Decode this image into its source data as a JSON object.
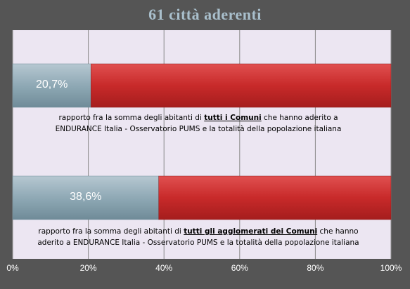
{
  "chart_data": {
    "type": "bar",
    "orientation": "horizontal",
    "stacked": true,
    "title": "61 città aderenti",
    "xlim": [
      0,
      100
    ],
    "x_ticks": [
      "0%",
      "20%",
      "40%",
      "60%",
      "80%",
      "100%"
    ],
    "grid": true,
    "bars": [
      {
        "value": 20.7,
        "remainder": 79.3,
        "label": "20,7%",
        "caption_pre": "rapporto fra la somma degli abitanti di ",
        "caption_bold": "tutti i Comuni",
        "caption_post": " che hanno aderito a",
        "caption_line2": "ENDURANCE Italia - Osservatorio PUMS e la totalità della popolazione italiana"
      },
      {
        "value": 38.6,
        "remainder": 61.4,
        "label": "38,6%",
        "caption_pre": "rapporto fra la somma degli abitanti di ",
        "caption_bold": "tutti gli agglomerati dei Comuni",
        "caption_post": " che hanno",
        "caption_line2": "aderito a ENDURANCE Italia - Osservatorio PUMS e la totalità della popolazione italiana"
      }
    ],
    "colors": {
      "value": "#8fa9b5",
      "remainder": "#cc2a2a",
      "background": "#555555",
      "plot_area": "#ece6f2",
      "title": "#a9bfcc"
    }
  }
}
